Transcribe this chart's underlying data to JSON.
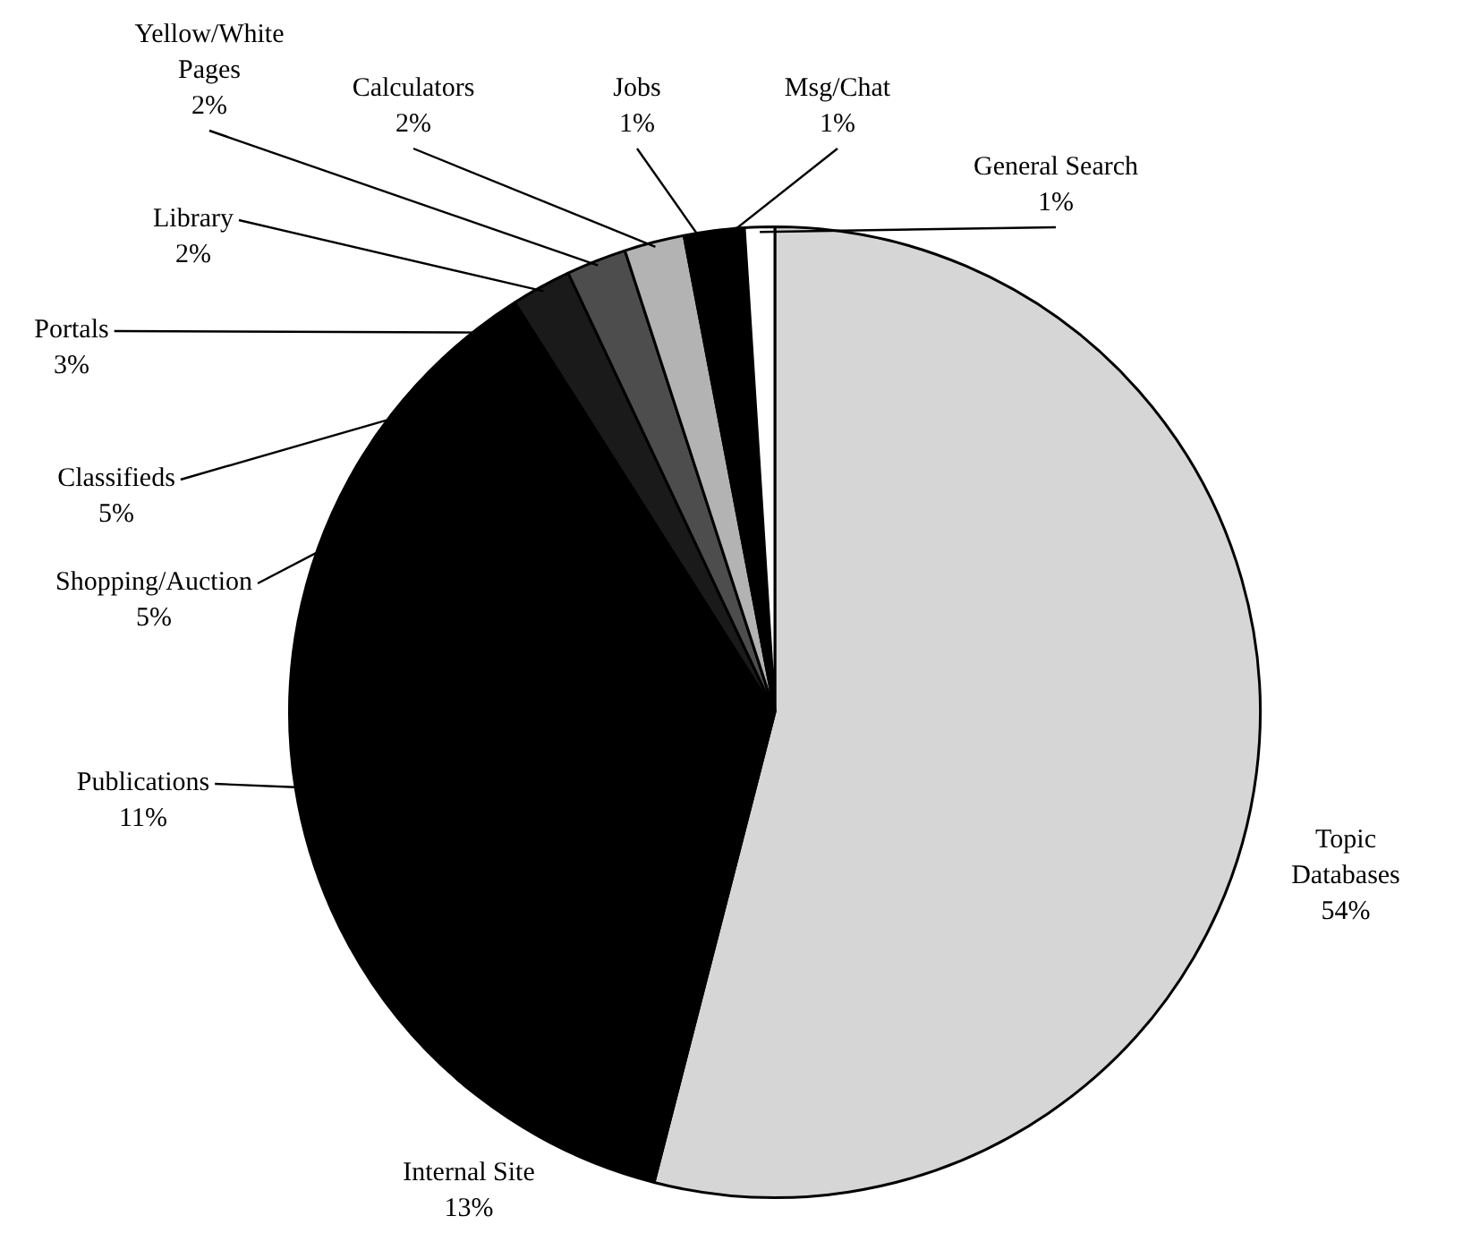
{
  "chart_data": {
    "type": "pie",
    "categories": [
      "Topic Databases",
      "Internal Site",
      "Publications",
      "Shopping/Auction",
      "Classifieds",
      "Portals",
      "Library",
      "Yellow/White Pages",
      "Calculators",
      "Jobs",
      "Msg/Chat",
      "General Search"
    ],
    "values": [
      54,
      13,
      11,
      5,
      5,
      3,
      2,
      2,
      2,
      1,
      1,
      1
    ],
    "value_labels": [
      "54%",
      "13%",
      "11%",
      "5%",
      "5%",
      "3%",
      "2%",
      "2%",
      "2%",
      "1%",
      "1%",
      "1%"
    ],
    "colors": [
      "#d6d6d6",
      "#000000",
      "#000000",
      "#000000",
      "#000000",
      "#000000",
      "#1a1a1a",
      "#4d4d4d",
      "#b3b3b3",
      "#000000",
      "#000000",
      "#ffffff"
    ],
    "legend": false
  }
}
